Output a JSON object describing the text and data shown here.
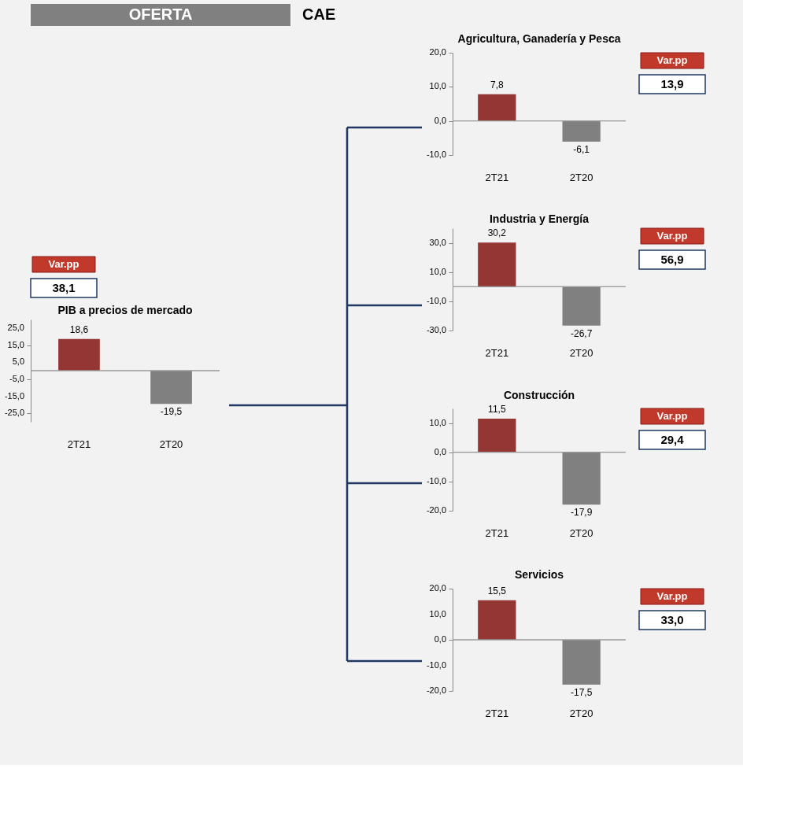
{
  "chart_data": [
    {
      "type": "bar",
      "title": "PIB a precios de mercado",
      "categories": [
        "2T21",
        "2T20"
      ],
      "values": [
        18.6,
        -19.5
      ],
      "value_labels": [
        "18,6",
        "-19,5"
      ],
      "colors": [
        "#943634",
        "#808080"
      ],
      "ylim": [
        -30,
        30
      ],
      "yticks": [
        {
          "value": -25,
          "label": "-25,0"
        },
        {
          "value": -15,
          "label": "-15,0"
        },
        {
          "value": -5,
          "label": "-5,0"
        },
        {
          "value": 5,
          "label": "5,0"
        },
        {
          "value": 15,
          "label": "15,0"
        },
        {
          "value": 25,
          "label": "25,0"
        }
      ],
      "annotations": [
        "OFERTA",
        "CAE",
        "Var.pp",
        "38,1"
      ]
    },
    {
      "type": "bar",
      "title": "Agricultura,  Ganadería y Pesca",
      "categories": [
        "2T21",
        "2T20"
      ],
      "values": [
        7.8,
        -6.1
      ],
      "value_labels": [
        "7,8",
        "-6,1"
      ],
      "colors": [
        "#943634",
        "#808080"
      ],
      "ylim": [
        -10,
        20
      ],
      "yticks": [
        {
          "value": -10,
          "label": "-10,0"
        },
        {
          "value": 0,
          "label": "0,0"
        },
        {
          "value": 10,
          "label": "10,0"
        },
        {
          "value": 20,
          "label": "20,0"
        }
      ],
      "annotations": [
        "Var.pp",
        "13,9"
      ]
    },
    {
      "type": "bar",
      "title": "Industria  y Energía",
      "categories": [
        "2T21",
        "2T20"
      ],
      "values": [
        30.2,
        -26.7
      ],
      "value_labels": [
        "30,2",
        "-26,7"
      ],
      "colors": [
        "#943634",
        "#808080"
      ],
      "ylim": [
        -30,
        40
      ],
      "yticks": [
        {
          "value": -30,
          "label": "-30,0"
        },
        {
          "value": -10,
          "label": "-10,0"
        },
        {
          "value": 10,
          "label": "10,0"
        },
        {
          "value": 30,
          "label": "30,0"
        }
      ],
      "annotations": [
        "Var.pp",
        "56,9"
      ]
    },
    {
      "type": "bar",
      "title": "Construcción",
      "categories": [
        "2T21",
        "2T20"
      ],
      "values": [
        11.5,
        -17.9
      ],
      "value_labels": [
        "11,5",
        "-17,9"
      ],
      "colors": [
        "#943634",
        "#808080"
      ],
      "ylim": [
        -20,
        15
      ],
      "yticks": [
        {
          "value": -20,
          "label": "-20,0"
        },
        {
          "value": -10,
          "label": "-10,0"
        },
        {
          "value": 0,
          "label": "0,0"
        },
        {
          "value": 10,
          "label": "10,0"
        }
      ],
      "annotations": [
        "Var.pp",
        "29,4"
      ]
    },
    {
      "type": "bar",
      "title": "Servicios",
      "categories": [
        "2T21",
        "2T20"
      ],
      "values": [
        15.5,
        -17.5
      ],
      "value_labels": [
        "15,5",
        "-17,5"
      ],
      "colors": [
        "#943634",
        "#808080"
      ],
      "ylim": [
        -20,
        20
      ],
      "yticks": [
        {
          "value": -20,
          "label": "-20,0"
        },
        {
          "value": -10,
          "label": "-10,0"
        },
        {
          "value": 0,
          "label": "0,0"
        },
        {
          "value": 10,
          "label": "10,0"
        },
        {
          "value": 20,
          "label": "20,0"
        }
      ],
      "annotations": [
        "Var.pp",
        "33,0"
      ]
    }
  ]
}
